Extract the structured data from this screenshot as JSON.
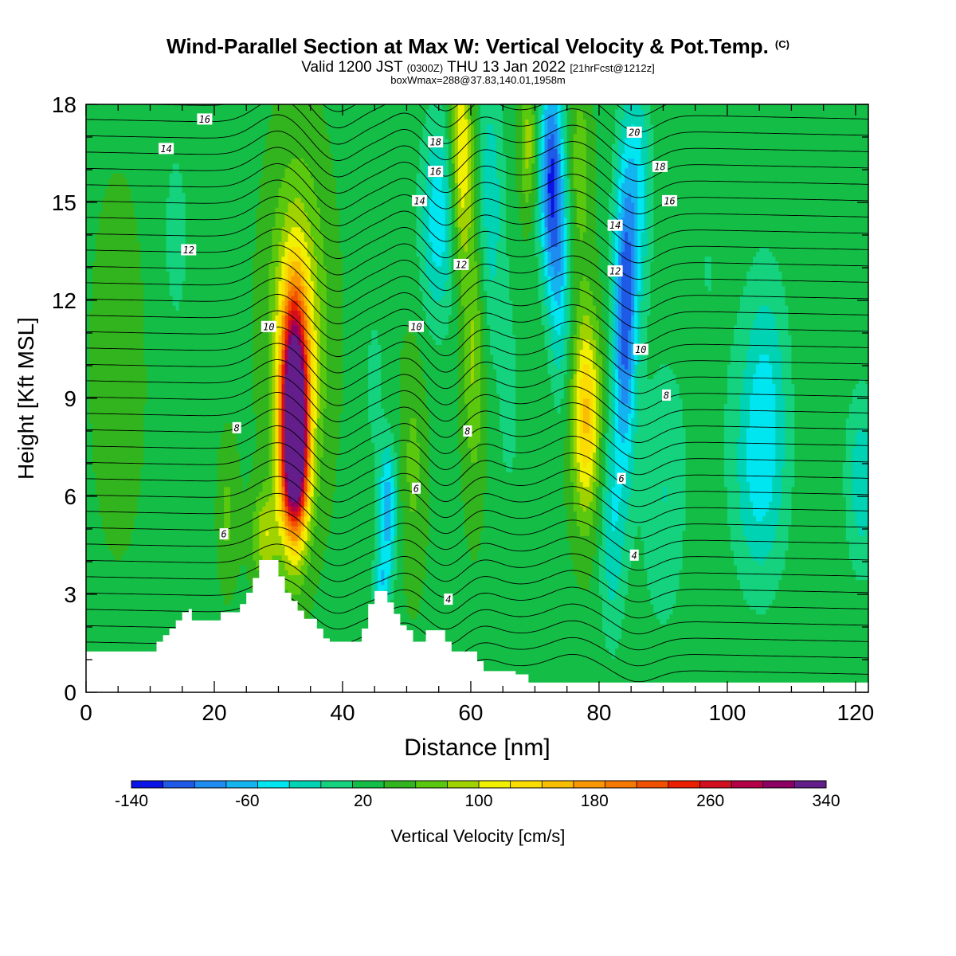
{
  "title": {
    "main": "Wind-Parallel Section at Max W: Vertical Velocity & Pot.Temp.",
    "copyright": "(C)",
    "valid_prefix": "Valid 1200 JST",
    "valid_utc": "(0300Z)",
    "valid_date": "THU 13 Jan 2022",
    "valid_fcst": "[21hrFcst@1212z]",
    "box_info": "boxWmax=288@37.83,140.01,1958m"
  },
  "chart_data": {
    "type": "heatmap",
    "xlabel": "Distance [nm]",
    "ylabel": "Height [Kft MSL]",
    "xlim": [
      0,
      122
    ],
    "ylim": [
      0,
      18
    ],
    "x_ticks": [
      0,
      20,
      40,
      60,
      80,
      100,
      120
    ],
    "y_ticks": [
      0,
      3,
      6,
      9,
      12,
      15,
      18
    ],
    "colorbar": {
      "label": "Vertical Velocity [cm/s]",
      "tick_labels": [
        -140,
        -60,
        20,
        100,
        180,
        260,
        340
      ],
      "range": [
        -140,
        340
      ],
      "step": 20,
      "colors": [
        "#0a14e6",
        "#1e5ae6",
        "#1e8cf0",
        "#14b4f0",
        "#00e6f0",
        "#00d2b4",
        "#14d27d",
        "#14be46",
        "#32b41e",
        "#5ac80f",
        "#a0d200",
        "#f0f000",
        "#fadc00",
        "#fabe00",
        "#fa9600",
        "#f57800",
        "#f05000",
        "#eb1e00",
        "#d20f1e",
        "#b40046",
        "#8c0064",
        "#641e8c"
      ]
    },
    "terrain_nm_kft": [
      [
        0,
        1.25
      ],
      [
        11,
        1.25
      ],
      [
        11,
        1.55
      ],
      [
        12,
        1.55
      ],
      [
        12,
        1.75
      ],
      [
        13,
        1.75
      ],
      [
        13,
        1.95
      ],
      [
        14,
        1.95
      ],
      [
        14,
        2.2
      ],
      [
        15,
        2.2
      ],
      [
        15,
        2.45
      ],
      [
        16,
        2.45
      ],
      [
        16,
        2.55
      ],
      [
        16.5,
        2.55
      ],
      [
        16.5,
        2.2
      ],
      [
        21,
        2.2
      ],
      [
        21,
        2.45
      ],
      [
        24,
        2.45
      ],
      [
        24,
        2.7
      ],
      [
        25,
        2.7
      ],
      [
        25,
        3.05
      ],
      [
        26,
        3.05
      ],
      [
        26,
        3.5
      ],
      [
        27,
        3.5
      ],
      [
        27,
        4.05
      ],
      [
        30,
        4.05
      ],
      [
        30,
        3.55
      ],
      [
        31,
        3.55
      ],
      [
        31,
        3.05
      ],
      [
        32,
        3.05
      ],
      [
        32,
        2.8
      ],
      [
        33,
        2.8
      ],
      [
        33,
        2.5
      ],
      [
        34,
        2.5
      ],
      [
        34,
        2.25
      ],
      [
        36,
        2.25
      ],
      [
        36,
        1.95
      ],
      [
        37,
        1.95
      ],
      [
        37,
        1.65
      ],
      [
        38,
        1.65
      ],
      [
        38,
        1.55
      ],
      [
        43,
        1.55
      ],
      [
        43,
        1.95
      ],
      [
        44,
        1.95
      ],
      [
        44,
        2.7
      ],
      [
        45,
        2.7
      ],
      [
        45,
        3.1
      ],
      [
        47,
        3.1
      ],
      [
        47,
        2.75
      ],
      [
        48,
        2.75
      ],
      [
        48,
        2.4
      ],
      [
        49,
        2.4
      ],
      [
        49,
        2.05
      ],
      [
        50,
        2.05
      ],
      [
        50,
        1.9
      ],
      [
        51,
        1.9
      ],
      [
        51,
        1.55
      ],
      [
        53,
        1.55
      ],
      [
        53,
        1.9
      ],
      [
        56,
        1.9
      ],
      [
        56,
        1.55
      ],
      [
        57,
        1.55
      ],
      [
        57,
        1.25
      ],
      [
        61,
        1.25
      ],
      [
        61,
        0.95
      ],
      [
        62,
        0.95
      ],
      [
        62,
        0.65
      ],
      [
        67,
        0.65
      ],
      [
        67,
        0.55
      ],
      [
        69,
        0.55
      ],
      [
        69,
        0.3
      ],
      [
        122,
        0.3
      ]
    ],
    "w_features": [
      {
        "x": 32.5,
        "y": 8.5,
        "sx": 1.4,
        "sy": 2.3,
        "w": 340
      },
      {
        "x": 32.5,
        "y": 6.8,
        "sx": 1.5,
        "sy": 1.3,
        "w": 90
      },
      {
        "x": 33,
        "y": 11.0,
        "sx": 3.0,
        "sy": 3.5,
        "w": 80
      },
      {
        "x": 28,
        "y": 4.8,
        "sx": 1.5,
        "sy": 1.0,
        "w": 60
      },
      {
        "x": 22,
        "y": 5.5,
        "sx": 1.2,
        "sy": 1.5,
        "w": 30
      },
      {
        "x": 47,
        "y": 5.6,
        "sx": 1.0,
        "sy": 1.4,
        "w": -95
      },
      {
        "x": 46,
        "y": 3.4,
        "sx": 0.9,
        "sy": 0.5,
        "w": -60
      },
      {
        "x": 45,
        "y": 9.5,
        "sx": 0.8,
        "sy": 1.3,
        "w": -35
      },
      {
        "x": 51,
        "y": 7.0,
        "sx": 1.4,
        "sy": 2.5,
        "w": 30
      },
      {
        "x": 55,
        "y": 14.5,
        "sx": 2.0,
        "sy": 2.2,
        "w": -70
      },
      {
        "x": 58.5,
        "y": 16.5,
        "sx": 1.2,
        "sy": 2.5,
        "w": 90
      },
      {
        "x": 60.5,
        "y": 10.5,
        "sx": 1.2,
        "sy": 3.0,
        "w": 50
      },
      {
        "x": 63,
        "y": 15.0,
        "sx": 1.5,
        "sy": 3.0,
        "w": -50
      },
      {
        "x": 69,
        "y": 16.8,
        "sx": 1.0,
        "sy": 1.5,
        "w": 55
      },
      {
        "x": 72.5,
        "y": 15.8,
        "sx": 1.3,
        "sy": 2.3,
        "w": -130
      },
      {
        "x": 74,
        "y": 12.5,
        "sx": 1.2,
        "sy": 2.5,
        "w": -60
      },
      {
        "x": 78,
        "y": 8.5,
        "sx": 1.6,
        "sy": 2.2,
        "w": 110
      },
      {
        "x": 77,
        "y": 16.0,
        "sx": 1.2,
        "sy": 2.0,
        "w": 40
      },
      {
        "x": 84,
        "y": 11.5,
        "sx": 1.3,
        "sy": 3.2,
        "w": -125
      },
      {
        "x": 82,
        "y": 5.0,
        "sx": 1.4,
        "sy": 2.5,
        "w": -50
      },
      {
        "x": 86,
        "y": 15.5,
        "sx": 1.5,
        "sy": 2.5,
        "w": -60
      },
      {
        "x": 18,
        "y": 6.0,
        "sx": 1.5,
        "sy": 3.0,
        "w": -15
      },
      {
        "x": 97,
        "y": 13.0,
        "sx": 3.0,
        "sy": 4.0,
        "w": -15
      },
      {
        "x": 105,
        "y": 6.5,
        "sx": 3.0,
        "sy": 2.5,
        "w": -55
      },
      {
        "x": 106,
        "y": 10.0,
        "sx": 2.5,
        "sy": 2.5,
        "w": -40
      },
      {
        "x": 121,
        "y": 6.5,
        "sx": 1.8,
        "sy": 2.0,
        "w": -50
      },
      {
        "x": 90,
        "y": 6.0,
        "sx": 2.5,
        "sy": 3.0,
        "w": -35
      },
      {
        "x": 5,
        "y": 10.0,
        "sx": 3.0,
        "sy": 4.0,
        "w": 15
      },
      {
        "x": 14,
        "y": 14.0,
        "sx": 2.0,
        "sy": 3.0,
        "w": -20
      },
      {
        "x": 66,
        "y": 9.0,
        "sx": 1.5,
        "sy": 3.0,
        "w": -20
      }
    ],
    "contour_labels": [
      {
        "text": "16",
        "x": 18.5,
        "y": 17.55
      },
      {
        "text": "14",
        "x": 12.5,
        "y": 16.65
      },
      {
        "text": "12",
        "x": 16,
        "y": 13.55
      },
      {
        "text": "10",
        "x": 28.5,
        "y": 11.2
      },
      {
        "text": "8",
        "x": 23.5,
        "y": 8.1
      },
      {
        "text": "6",
        "x": 21.5,
        "y": 4.85
      },
      {
        "text": "18",
        "x": 54.5,
        "y": 16.85
      },
      {
        "text": "16",
        "x": 54.5,
        "y": 15.95
      },
      {
        "text": "14",
        "x": 52,
        "y": 15.05
      },
      {
        "text": "12",
        "x": 58.5,
        "y": 13.1
      },
      {
        "text": "10",
        "x": 51.5,
        "y": 11.2
      },
      {
        "text": "8",
        "x": 59.5,
        "y": 8.0
      },
      {
        "text": "6",
        "x": 51.5,
        "y": 6.25
      },
      {
        "text": "4",
        "x": 56.5,
        "y": 2.85
      },
      {
        "text": "20",
        "x": 85.5,
        "y": 17.15
      },
      {
        "text": "18",
        "x": 89.5,
        "y": 16.1
      },
      {
        "text": "16",
        "x": 91,
        "y": 15.05
      },
      {
        "text": "14",
        "x": 82.5,
        "y": 14.3
      },
      {
        "text": "12",
        "x": 82.5,
        "y": 12.9
      },
      {
        "text": "10",
        "x": 86.5,
        "y": 10.5
      },
      {
        "text": "8",
        "x": 90.5,
        "y": 9.1
      },
      {
        "text": "6",
        "x": 83.5,
        "y": 6.55
      },
      {
        "text": "4",
        "x": 85.5,
        "y": 4.2
      }
    ]
  }
}
